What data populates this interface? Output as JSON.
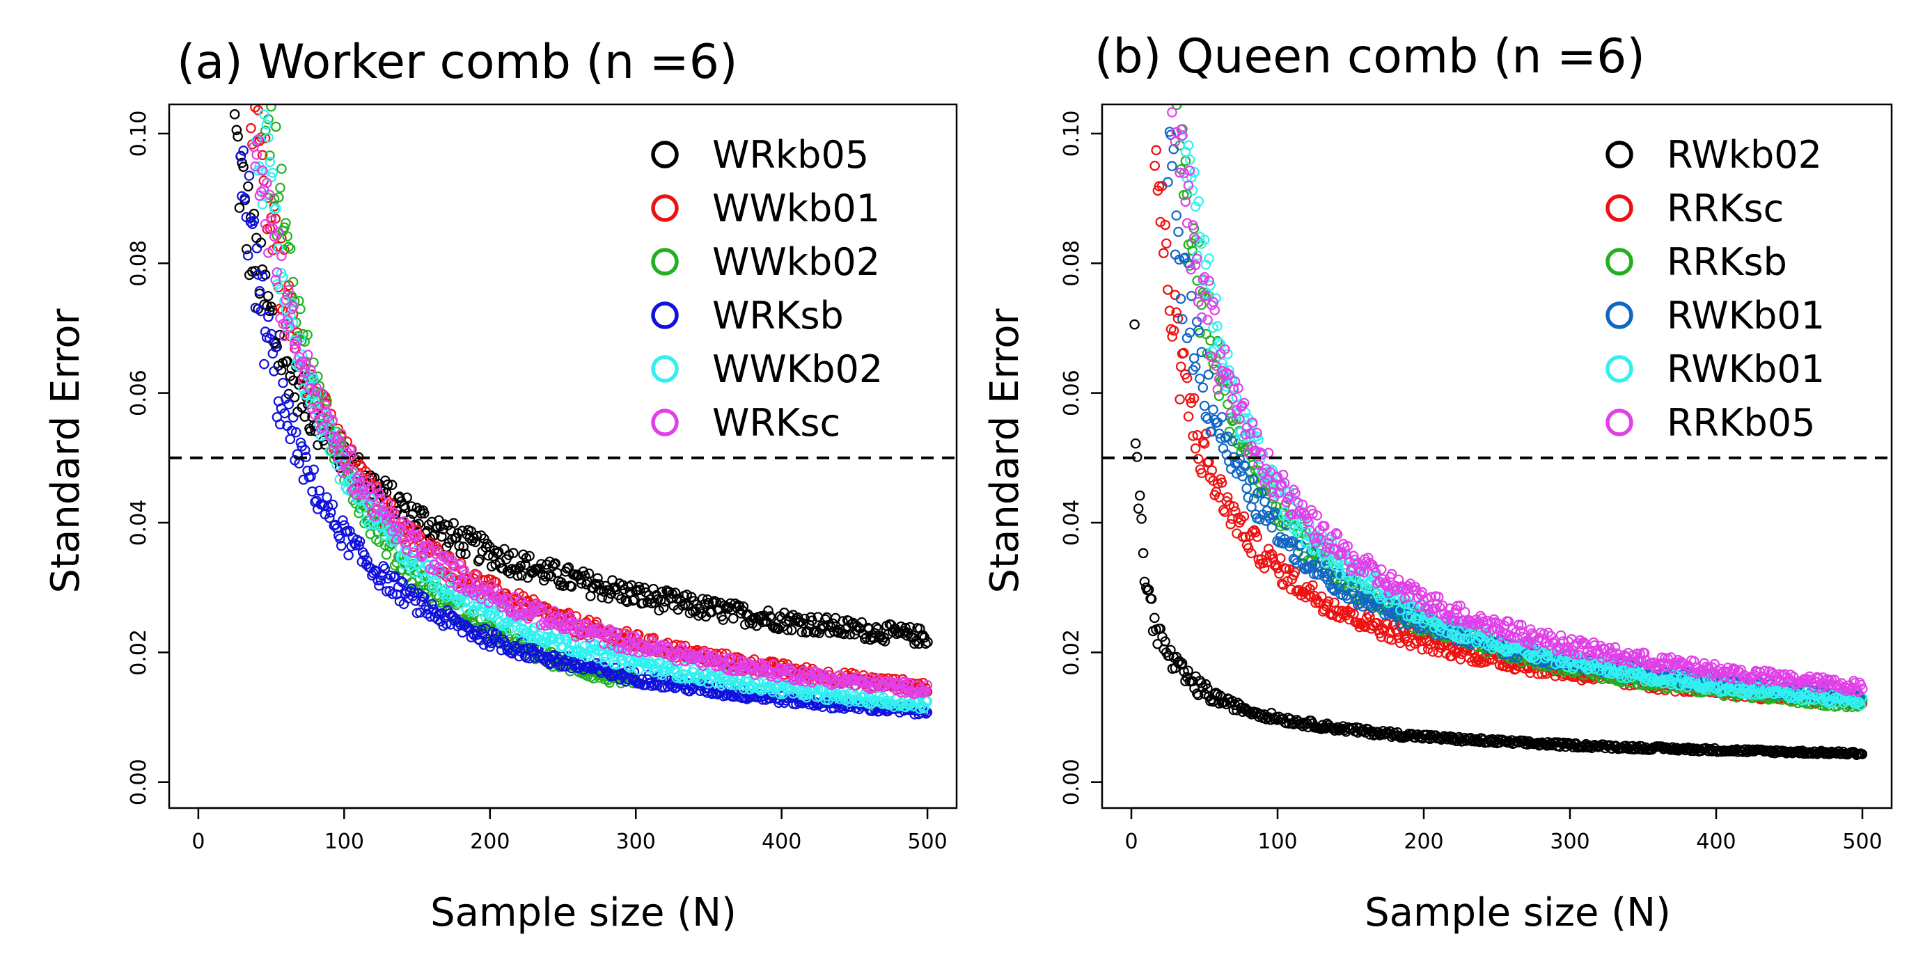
{
  "chart_data": [
    {
      "type": "scatter",
      "title": "(a) Worker comb (n =6)",
      "xlabel": "Sample size (N)",
      "ylabel": "Standard Error",
      "xlim": [
        -20,
        520
      ],
      "ylim": [
        -0.004,
        0.1045
      ],
      "xticks": [
        "0",
        "100",
        "200",
        "300",
        "400",
        "500"
      ],
      "xtick_values": [
        0,
        100,
        200,
        300,
        400,
        500
      ],
      "yticks": [
        "0.00",
        "0.02",
        "0.04",
        "0.06",
        "0.08",
        "0.10"
      ],
      "ytick_values": [
        0,
        0.02,
        0.04,
        0.06,
        0.08,
        0.1
      ],
      "reference_line": 0.05,
      "legend_position": "top-right",
      "series": [
        {
          "name": "WRkb05",
          "color": "#000000",
          "n_start": 25,
          "n_end": 500,
          "se_at_100": 0.05,
          "decay": 0.5
        },
        {
          "name": "WWkb01",
          "color": "#ee1111",
          "n_start": 25,
          "n_end": 500,
          "se_at_100": 0.0505,
          "decay": 0.77
        },
        {
          "name": "WWkb02",
          "color": "#22b022",
          "n_start": 25,
          "n_end": 300,
          "se_at_100": 0.0485,
          "decay": 1.06
        },
        {
          "name": "WRKsb",
          "color": "#1111dd",
          "n_start": 12,
          "n_end": 500,
          "se_at_100": 0.038,
          "decay": 0.78
        },
        {
          "name": "WWKb02",
          "color": "#33f0f0",
          "n_start": 40,
          "n_end": 500,
          "se_at_100": 0.048,
          "decay": 0.87
        },
        {
          "name": "WRKsc",
          "color": "#e040e8",
          "n_start": 25,
          "n_end": 500,
          "se_at_100": 0.05,
          "decay": 0.78
        }
      ]
    },
    {
      "type": "scatter",
      "title": "(b) Queen comb (n =6)",
      "xlabel": "Sample size (N)",
      "ylabel": "Standard Error",
      "xlim": [
        -20,
        520
      ],
      "ylim": [
        -0.004,
        0.1045
      ],
      "xticks": [
        "0",
        "100",
        "200",
        "300",
        "400",
        "500"
      ],
      "xtick_values": [
        0,
        100,
        200,
        300,
        400,
        500
      ],
      "yticks": [
        "0.00",
        "0.02",
        "0.04",
        "0.06",
        "0.08",
        "0.10"
      ],
      "ytick_values": [
        0,
        0.02,
        0.04,
        0.06,
        0.08,
        0.1
      ],
      "reference_line": 0.05,
      "legend_position": "top-right",
      "series": [
        {
          "name": "RWkb02",
          "color": "#000000",
          "n_start": 2,
          "n_end": 500,
          "se_at_100": 0.0099,
          "decay": 0.5
        },
        {
          "name": "RRKsc",
          "color": "#ee1111",
          "n_start": 12,
          "n_end": 500,
          "se_at_100": 0.033,
          "decay": 0.61
        },
        {
          "name": "RRKsb",
          "color": "#22b022",
          "n_start": 18,
          "n_end": 500,
          "se_at_100": 0.042,
          "decay": 0.78
        },
        {
          "name": "RWKb01",
          "color": "#1166c4",
          "n_start": 15,
          "n_end": 500,
          "se_at_100": 0.039,
          "decay": 0.67
        },
        {
          "name": "RWKb01",
          "color": "#33f0f0",
          "n_start": 20,
          "n_end": 500,
          "se_at_100": 0.045,
          "decay": 0.8
        },
        {
          "name": "RRKb05",
          "color": "#e040e8",
          "n_start": 20,
          "n_end": 500,
          "se_at_100": 0.046,
          "decay": 0.71
        }
      ]
    }
  ]
}
